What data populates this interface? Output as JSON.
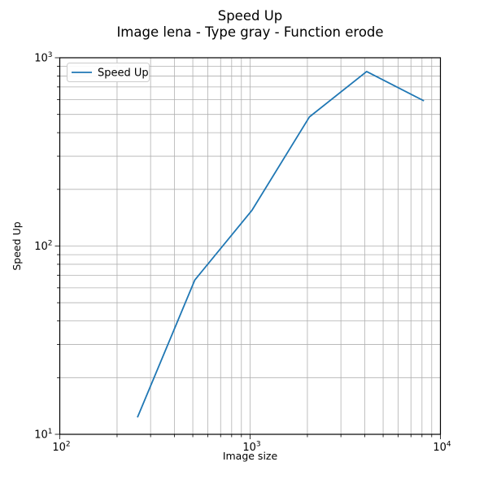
{
  "title": {
    "line1": "Speed Up",
    "line2": "Image lena - Type gray - Function erode"
  },
  "axes": {
    "xlabel": "Image size",
    "ylabel": "Speed Up"
  },
  "legend": {
    "label": "Speed Up"
  },
  "colors": {
    "line": "#1f77b4",
    "grid": "#b0b0b0",
    "spine": "#000000",
    "tick": "#000000",
    "legend_border": "#cccccc",
    "background": "#ffffff"
  },
  "chart_data": {
    "type": "line",
    "title": "Speed Up\nImage lena - Type gray - Function erode",
    "xlabel": "Image size",
    "ylabel": "Speed Up",
    "xscale": "log",
    "yscale": "log",
    "xlim": [
      100,
      10000
    ],
    "ylim": [
      10,
      1000
    ],
    "grid": "both",
    "legend_position": "upper left",
    "series": [
      {
        "name": "Speed Up",
        "x": [
          256,
          512,
          1024,
          2048,
          4096,
          8192
        ],
        "y": [
          12.3,
          66,
          155,
          485,
          845,
          590
        ]
      }
    ],
    "x_ticks": [
      {
        "value": 100,
        "base": "10",
        "exp": "2"
      },
      {
        "value": 1000,
        "base": "10",
        "exp": "3"
      },
      {
        "value": 10000,
        "base": "10",
        "exp": "4"
      }
    ],
    "y_ticks": [
      {
        "value": 10,
        "base": "10",
        "exp": "1"
      },
      {
        "value": 100,
        "base": "10",
        "exp": "2"
      },
      {
        "value": 1000,
        "base": "10",
        "exp": "3"
      }
    ]
  }
}
